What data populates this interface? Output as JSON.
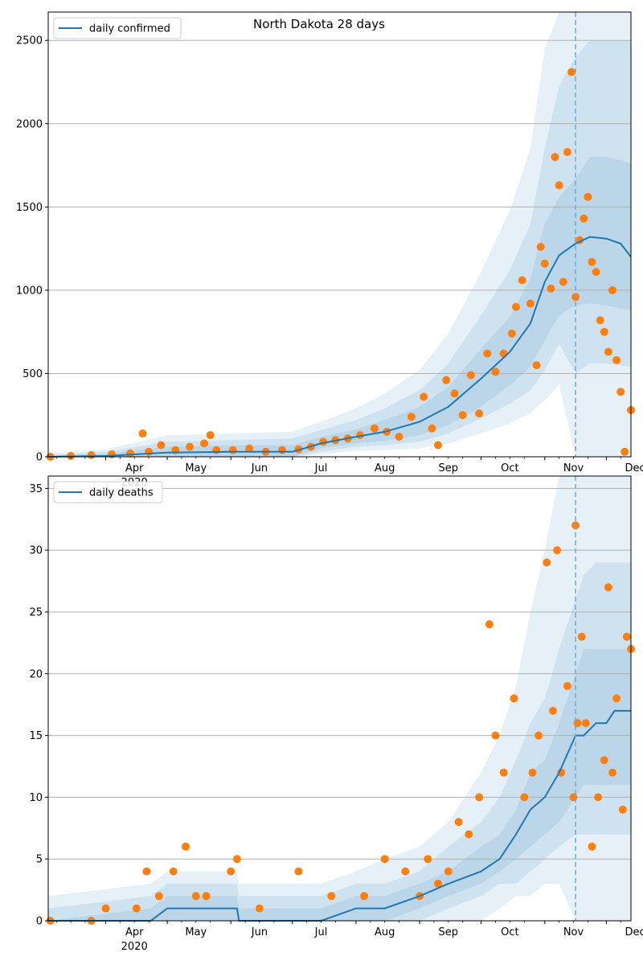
{
  "figure_title": "North Dakota 28 days",
  "colors": {
    "model_line": "#1f77b4",
    "observed": "#ff7f0e",
    "band": "#1f77b4",
    "grid": "#b0b0b0",
    "forecast_marker": "#6fa8d6"
  },
  "x_axis": {
    "month_labels": [
      "Apr",
      "May",
      "Jun",
      "Jul",
      "Aug",
      "Sep",
      "Oct",
      "Nov",
      "Dec"
    ],
    "year_label": "2020"
  },
  "chart_data": [
    {
      "type": "line",
      "title": "North Dakota 28 days",
      "legend": [
        "daily confirmed"
      ],
      "legend_position": "upper-left",
      "xlabel": "",
      "ylabel": "",
      "x_range": [
        "2020-03-04",
        "2020-12-13"
      ],
      "ylim": [
        0,
        2670
      ],
      "y_ticks": [
        0,
        500,
        1000,
        1500,
        2000,
        2500
      ],
      "grid": "horizontal",
      "forecast_start": "2020-11-16",
      "model_series": {
        "name": "daily confirmed",
        "x": [
          "2020-03-04",
          "2020-04-01",
          "2020-05-01",
          "2020-06-01",
          "2020-07-01",
          "2020-07-15",
          "2020-08-01",
          "2020-08-15",
          "2020-09-01",
          "2020-09-15",
          "2020-10-01",
          "2020-10-15",
          "2020-10-25",
          "2020-11-01",
          "2020-11-08",
          "2020-11-16",
          "2020-11-23",
          "2020-12-01",
          "2020-12-08",
          "2020-12-13"
        ],
        "values": [
          0,
          5,
          25,
          30,
          30,
          80,
          120,
          150,
          210,
          300,
          470,
          630,
          800,
          1050,
          1210,
          1280,
          1320,
          1310,
          1280,
          1200
        ]
      },
      "bands": [
        {
          "lower": [
            0,
            0,
            0,
            0,
            0,
            50,
            80,
            95,
            130,
            190,
            300,
            430,
            540,
            700,
            850,
            910,
            920,
            910,
            890,
            880
          ],
          "upper": [
            5,
            20,
            60,
            70,
            70,
            120,
            165,
            220,
            300,
            420,
            650,
            840,
            1070,
            1400,
            1560,
            1670,
            1800,
            1800,
            1780,
            1760
          ]
        },
        {
          "lower": [
            0,
            0,
            0,
            0,
            0,
            30,
            60,
            70,
            90,
            140,
            230,
            320,
            400,
            520,
            680,
            500,
            560,
            560,
            550,
            540
          ],
          "upper": [
            10,
            30,
            90,
            100,
            110,
            160,
            220,
            290,
            400,
            560,
            850,
            1120,
            1400,
            1850,
            2230,
            2400,
            2500,
            2500,
            2500,
            2500
          ]
        },
        {
          "lower": [
            0,
            0,
            0,
            0,
            0,
            15,
            35,
            40,
            50,
            80,
            140,
            200,
            260,
            340,
            430,
            0,
            0,
            0,
            0,
            0
          ],
          "upper": [
            20,
            45,
            130,
            140,
            150,
            210,
            290,
            380,
            520,
            740,
            1110,
            1480,
            1850,
            2450,
            2670,
            2670,
            2670,
            2670,
            2670,
            2670
          ]
        }
      ],
      "observed": {
        "x": [
          "2020-03-05",
          "2020-03-15",
          "2020-03-25",
          "2020-04-04",
          "2020-04-13",
          "2020-04-19",
          "2020-04-22",
          "2020-04-28",
          "2020-05-05",
          "2020-05-12",
          "2020-05-19",
          "2020-05-22",
          "2020-05-25",
          "2020-06-02",
          "2020-06-10",
          "2020-06-18",
          "2020-06-26",
          "2020-07-04",
          "2020-07-10",
          "2020-07-16",
          "2020-07-22",
          "2020-07-28",
          "2020-08-03",
          "2020-08-10",
          "2020-08-16",
          "2020-08-22",
          "2020-08-28",
          "2020-09-03",
          "2020-09-07",
          "2020-09-10",
          "2020-09-14",
          "2020-09-18",
          "2020-09-22",
          "2020-09-26",
          "2020-09-30",
          "2020-10-04",
          "2020-10-08",
          "2020-10-12",
          "2020-10-16",
          "2020-10-18",
          "2020-10-21",
          "2020-10-25",
          "2020-10-28",
          "2020-10-30",
          "2020-11-01",
          "2020-11-04",
          "2020-11-06",
          "2020-11-08",
          "2020-11-10",
          "2020-11-12",
          "2020-11-14",
          "2020-11-16",
          "2020-11-18",
          "2020-11-20",
          "2020-11-22",
          "2020-11-24",
          "2020-11-26",
          "2020-11-28",
          "2020-11-30",
          "2020-12-02",
          "2020-12-04",
          "2020-12-06",
          "2020-12-08",
          "2020-12-10",
          "2020-12-13"
        ],
        "values": [
          0,
          5,
          10,
          15,
          20,
          140,
          30,
          70,
          40,
          60,
          80,
          130,
          40,
          40,
          50,
          30,
          40,
          45,
          60,
          90,
          100,
          110,
          130,
          170,
          150,
          120,
          240,
          360,
          170,
          70,
          460,
          380,
          250,
          490,
          260,
          620,
          510,
          620,
          740,
          900,
          1060,
          920,
          550,
          1260,
          1160,
          1010,
          1800,
          1630,
          1050,
          1830,
          2310,
          960,
          1300,
          1430,
          1560,
          1170,
          1110,
          820,
          750,
          630,
          1000,
          580,
          390,
          30,
          280
        ]
      }
    },
    {
      "type": "line",
      "title": "",
      "legend": [
        "daily deaths"
      ],
      "legend_position": "upper-left",
      "xlabel": "",
      "ylabel": "",
      "x_range": [
        "2020-03-04",
        "2020-12-13"
      ],
      "ylim": [
        0,
        36
      ],
      "y_ticks": [
        0,
        5,
        10,
        15,
        20,
        25,
        30,
        35
      ],
      "grid": "horizontal",
      "forecast_start": "2020-11-16",
      "model_series": {
        "name": "daily deaths",
        "x": [
          "2020-03-04",
          "2020-04-23",
          "2020-05-01",
          "2020-06-04",
          "2020-06-05",
          "2020-07-15",
          "2020-08-01",
          "2020-08-15",
          "2020-09-01",
          "2020-09-15",
          "2020-10-01",
          "2020-10-10",
          "2020-10-18",
          "2020-10-25",
          "2020-11-01",
          "2020-11-08",
          "2020-11-16",
          "2020-11-20",
          "2020-11-26",
          "2020-12-01",
          "2020-12-05",
          "2020-12-08",
          "2020-12-13"
        ],
        "values": [
          0,
          0,
          1,
          1,
          0,
          0,
          1,
          1,
          2,
          3,
          4,
          5,
          7,
          9,
          10,
          12,
          15,
          15,
          16,
          16,
          17,
          17,
          17
        ]
      },
      "bands": [
        {
          "lower": [
            0,
            0,
            0,
            0,
            0,
            0,
            0,
            0,
            1,
            2,
            3,
            4,
            5,
            6,
            7,
            8,
            10,
            11,
            11,
            11,
            11,
            11,
            11
          ],
          "upper": [
            0,
            1,
            2,
            2,
            1,
            1,
            2,
            2,
            3,
            4,
            6,
            7,
            9,
            12,
            13,
            16,
            20,
            22,
            22,
            22,
            22,
            22,
            22
          ]
        },
        {
          "lower": [
            0,
            0,
            0,
            0,
            0,
            0,
            0,
            0,
            0,
            1,
            2,
            3,
            3,
            4,
            5,
            6,
            7,
            7,
            7,
            7,
            7,
            7,
            7
          ],
          "upper": [
            1,
            2,
            3,
            3,
            2,
            2,
            3,
            3,
            4,
            6,
            8,
            10,
            13,
            16,
            18,
            22,
            26,
            28,
            29,
            29,
            29,
            29,
            29
          ]
        },
        {
          "lower": [
            0,
            0,
            0,
            0,
            0,
            0,
            0,
            0,
            0,
            0,
            0,
            1,
            2,
            2,
            3,
            3,
            0,
            0,
            0,
            0,
            0,
            0,
            0
          ],
          "upper": [
            2,
            3,
            4,
            4,
            3,
            3,
            4,
            5,
            6,
            8,
            12,
            15,
            19,
            25,
            30,
            36,
            36,
            36,
            36,
            36,
            36,
            36,
            36
          ]
        }
      ],
      "observed": {
        "x": [
          "2020-03-05",
          "2020-03-25",
          "2020-04-01",
          "2020-04-16",
          "2020-04-21",
          "2020-04-27",
          "2020-05-04",
          "2020-05-10",
          "2020-05-15",
          "2020-05-20",
          "2020-06-01",
          "2020-06-04",
          "2020-06-15",
          "2020-07-04",
          "2020-07-20",
          "2020-08-05",
          "2020-08-15",
          "2020-08-25",
          "2020-09-01",
          "2020-09-05",
          "2020-09-10",
          "2020-09-15",
          "2020-09-20",
          "2020-09-25",
          "2020-09-30",
          "2020-10-05",
          "2020-10-08",
          "2020-10-12",
          "2020-10-17",
          "2020-10-22",
          "2020-10-26",
          "2020-10-29",
          "2020-11-02",
          "2020-11-05",
          "2020-11-07",
          "2020-11-09",
          "2020-11-12",
          "2020-11-15",
          "2020-11-16",
          "2020-11-17",
          "2020-11-19",
          "2020-11-21",
          "2020-11-24",
          "2020-11-27",
          "2020-11-30",
          "2020-12-02",
          "2020-12-04",
          "2020-12-06",
          "2020-12-09",
          "2020-12-11",
          "2020-12-13"
        ],
        "values": [
          0,
          0,
          1,
          1,
          4,
          2,
          4,
          6,
          2,
          2,
          4,
          5,
          1,
          4,
          2,
          2,
          5,
          4,
          2,
          5,
          3,
          4,
          8,
          7,
          10,
          24,
          15,
          12,
          18,
          10,
          12,
          15,
          29,
          17,
          30,
          12,
          19,
          10,
          32,
          16,
          23,
          16,
          6,
          10,
          13,
          27,
          12,
          18,
          9,
          23,
          22
        ]
      }
    }
  ]
}
